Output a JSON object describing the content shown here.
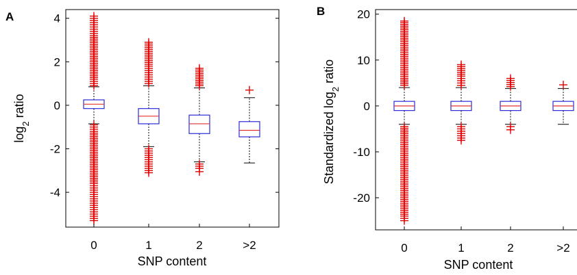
{
  "chart_data": [
    {
      "panel": "A",
      "type": "box",
      "xlabel": "SNP content",
      "ylabel_main": "log",
      "ylabel_sub": "2",
      "ylabel_rest": " ratio",
      "ylim": [
        -5.6,
        4.4
      ],
      "yticks": [
        4,
        2,
        0,
        -2,
        -4
      ],
      "categories": [
        "0",
        "1",
        "2",
        ">2"
      ],
      "boxes": [
        {
          "q1": -0.15,
          "median": 0.05,
          "q3": 0.25,
          "whisker_low": -0.85,
          "whisker_high": 0.85,
          "outliers_low": [
            -0.9,
            -1.2,
            -1.6,
            -2.0,
            -2.4,
            -2.8,
            -3.2,
            -3.6,
            -3.9,
            -4.1,
            -4.4,
            -4.7,
            -5.0,
            -5.3
          ],
          "outliers_high": [
            0.9,
            1.2,
            1.6,
            2.0,
            2.4,
            2.8,
            3.2,
            3.4,
            3.6,
            3.9,
            4.1
          ]
        },
        {
          "q1": -0.85,
          "median": -0.5,
          "q3": -0.15,
          "whisker_low": -1.9,
          "whisker_high": 0.9,
          "outliers_low": [
            -2.0,
            -2.2,
            -2.4,
            -2.6,
            -2.8,
            -3.0,
            -3.1
          ],
          "outliers_high": [
            1.0,
            1.2,
            1.5,
            1.8,
            2.9
          ]
        },
        {
          "q1": -1.3,
          "median": -0.85,
          "q3": -0.45,
          "whisker_low": -2.6,
          "whisker_high": 0.8,
          "outliers_low": [
            -2.7,
            -2.9,
            -3.05
          ],
          "outliers_high": [
            0.9,
            1.7
          ]
        },
        {
          "q1": -1.45,
          "median": -1.15,
          "q3": -0.75,
          "whisker_low": -2.65,
          "whisker_high": 0.35,
          "outliers_low": [],
          "outliers_high": [
            0.7
          ]
        }
      ],
      "colors": {
        "box": "#2a2ad8",
        "median": "#e23030",
        "outlier": "#e00000",
        "whisker": "#000000"
      }
    },
    {
      "panel": "B",
      "type": "box",
      "xlabel": "SNP content",
      "ylabel_main": "Standardized log",
      "ylabel_sub": "2",
      "ylabel_rest": " ratio",
      "ylim": [
        -27,
        21
      ],
      "yticks": [
        20,
        10,
        0,
        -10,
        -20
      ],
      "categories": [
        "0",
        "1",
        "2",
        ">2"
      ],
      "boxes": [
        {
          "q1": -1.0,
          "median": 0.0,
          "q3": 1.0,
          "whisker_low": -4.0,
          "whisker_high": 4.0,
          "outliers_low": [
            -4.5,
            -6,
            -8,
            -10,
            -12,
            -14,
            -16,
            -18,
            -20,
            -22,
            -24,
            -25
          ],
          "outliers_high": [
            4.5,
            6,
            8,
            10,
            12,
            14,
            15.5,
            17,
            18.5
          ]
        },
        {
          "q1": -1.0,
          "median": 0.0,
          "q3": 1.0,
          "whisker_low": -4.0,
          "whisker_high": 4.0,
          "outliers_low": [
            -4.5,
            -5,
            -5.5,
            -6,
            -6.5,
            -7,
            -7.5
          ],
          "outliers_high": [
            4.5,
            5,
            5.5,
            6.5,
            9
          ]
        },
        {
          "q1": -1.0,
          "median": 0.0,
          "q3": 1.0,
          "whisker_low": -4.0,
          "whisker_high": 3.8,
          "outliers_low": [
            -4.5,
            -5.2
          ],
          "outliers_high": [
            4.2,
            6
          ]
        },
        {
          "q1": -1.0,
          "median": 0.0,
          "q3": 1.0,
          "whisker_low": -4.0,
          "whisker_high": 3.8,
          "outliers_low": [],
          "outliers_high": [
            4.6
          ]
        }
      ],
      "colors": {
        "box": "#2a2ad8",
        "median": "#e23030",
        "outlier": "#e00000",
        "whisker": "#000000"
      }
    }
  ]
}
